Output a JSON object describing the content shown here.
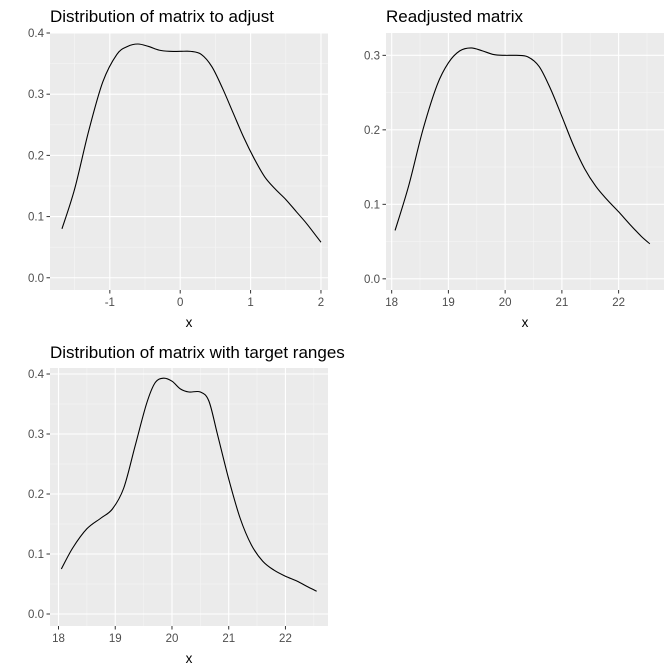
{
  "chart_data": [
    {
      "type": "line",
      "title": "Distribution of matrix to adjust",
      "xlabel": "x",
      "ylabel": "",
      "xlim": [
        -1.85,
        2.1
      ],
      "ylim": [
        -0.02,
        0.4
      ],
      "xticks": [
        -1,
        0,
        1,
        2
      ],
      "xtick_labels": [
        "-1",
        "0",
        "1",
        "2"
      ],
      "yticks": [
        0.0,
        0.1,
        0.2,
        0.3,
        0.4
      ],
      "ytick_labels": [
        "0.0",
        "0.1",
        "0.2",
        "0.3",
        "0.4"
      ],
      "grid": true,
      "x": [
        -1.68,
        -1.5,
        -1.3,
        -1.1,
        -0.9,
        -0.75,
        -0.6,
        -0.45,
        -0.3,
        -0.15,
        0.0,
        0.15,
        0.3,
        0.45,
        0.6,
        0.75,
        0.9,
        1.05,
        1.2,
        1.35,
        1.5,
        1.65,
        1.8,
        2.0
      ],
      "y": [
        0.08,
        0.145,
        0.24,
        0.32,
        0.365,
        0.378,
        0.382,
        0.378,
        0.372,
        0.37,
        0.37,
        0.37,
        0.365,
        0.345,
        0.31,
        0.27,
        0.23,
        0.195,
        0.165,
        0.145,
        0.128,
        0.108,
        0.088,
        0.058
      ]
    },
    {
      "type": "line",
      "title": "Readjusted matrix",
      "xlabel": "x",
      "ylabel": "",
      "xlim": [
        17.9,
        22.8
      ],
      "ylim": [
        -0.015,
        0.33
      ],
      "xticks": [
        18,
        19,
        20,
        21,
        22
      ],
      "xtick_labels": [
        "18",
        "19",
        "20",
        "21",
        "22"
      ],
      "yticks": [
        0.0,
        0.1,
        0.2,
        0.3
      ],
      "ytick_labels": [
        "0.0",
        "0.1",
        "0.2",
        "0.3"
      ],
      "grid": true,
      "x": [
        18.06,
        18.3,
        18.55,
        18.8,
        19.0,
        19.2,
        19.4,
        19.6,
        19.8,
        20.0,
        20.2,
        20.4,
        20.6,
        20.8,
        21.0,
        21.2,
        21.4,
        21.6,
        21.8,
        22.0,
        22.2,
        22.4,
        22.55
      ],
      "y": [
        0.065,
        0.125,
        0.2,
        0.26,
        0.29,
        0.306,
        0.31,
        0.306,
        0.301,
        0.3,
        0.3,
        0.298,
        0.285,
        0.255,
        0.218,
        0.18,
        0.148,
        0.124,
        0.106,
        0.09,
        0.073,
        0.057,
        0.047
      ]
    },
    {
      "type": "line",
      "title": "Distribution of matrix with target ranges",
      "xlabel": "x",
      "ylabel": "",
      "xlim": [
        17.85,
        22.75
      ],
      "ylim": [
        -0.02,
        0.41
      ],
      "xticks": [
        18,
        19,
        20,
        21,
        22
      ],
      "xtick_labels": [
        "18",
        "19",
        "20",
        "21",
        "22"
      ],
      "yticks": [
        0.0,
        0.1,
        0.2,
        0.3,
        0.4
      ],
      "ytick_labels": [
        "0.0",
        "0.1",
        "0.2",
        "0.3",
        "0.4"
      ],
      "grid": true,
      "x": [
        18.05,
        18.25,
        18.5,
        18.75,
        18.95,
        19.15,
        19.35,
        19.55,
        19.7,
        19.85,
        20.0,
        20.15,
        20.3,
        20.5,
        20.65,
        20.8,
        21.0,
        21.2,
        21.4,
        21.6,
        21.8,
        22.0,
        22.2,
        22.4,
        22.55
      ],
      "y": [
        0.075,
        0.11,
        0.142,
        0.16,
        0.175,
        0.21,
        0.28,
        0.35,
        0.385,
        0.393,
        0.388,
        0.375,
        0.37,
        0.37,
        0.355,
        0.3,
        0.225,
        0.16,
        0.115,
        0.088,
        0.073,
        0.063,
        0.055,
        0.045,
        0.038
      ]
    }
  ]
}
